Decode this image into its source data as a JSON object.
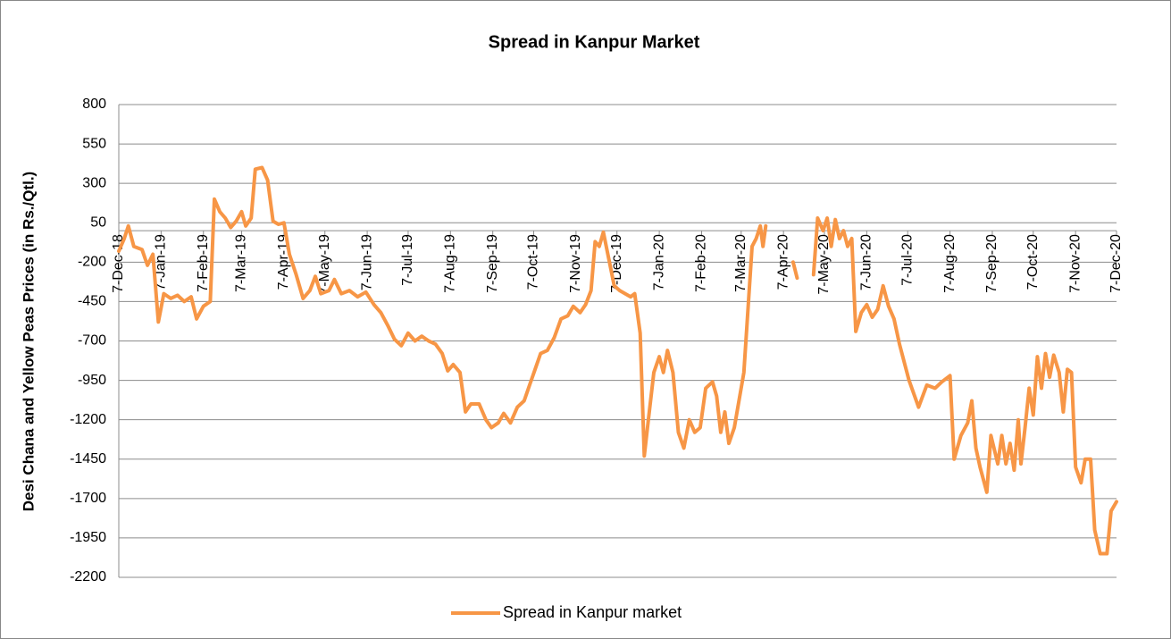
{
  "chart_data": {
    "type": "line",
    "title": "Spread in Kanpur Market",
    "y_label": "Desi  Chana and Yellow Peas Prices (in Rs./Qtl.)",
    "ylim": [
      -2200,
      800
    ],
    "yticks": [
      800,
      550,
      300,
      50,
      -200,
      -450,
      -700,
      -950,
      -1200,
      -1450,
      -1700,
      -1950,
      -2200
    ],
    "xlim": [
      "2018-12-07",
      "2020-12-07"
    ],
    "xticks": [
      {
        "value": "2018-12-07",
        "label": "7-Dec-18"
      },
      {
        "value": "2019-01-07",
        "label": "7-Jan-19"
      },
      {
        "value": "2019-02-07",
        "label": "7-Feb-19"
      },
      {
        "value": "2019-03-07",
        "label": "7-Mar-19"
      },
      {
        "value": "2019-04-07",
        "label": "7-Apr-19"
      },
      {
        "value": "2019-05-07",
        "label": "7-May-19"
      },
      {
        "value": "2019-06-07",
        "label": "7-Jun-19"
      },
      {
        "value": "2019-07-07",
        "label": "7-Jul-19"
      },
      {
        "value": "2019-08-07",
        "label": "7-Aug-19"
      },
      {
        "value": "2019-09-07",
        "label": "7-Sep-19"
      },
      {
        "value": "2019-10-07",
        "label": "7-Oct-19"
      },
      {
        "value": "2019-11-07",
        "label": "7-Nov-19"
      },
      {
        "value": "2019-12-07",
        "label": "7-Dec-19"
      },
      {
        "value": "2020-01-07",
        "label": "7-Jan-20"
      },
      {
        "value": "2020-02-07",
        "label": "7-Feb-20"
      },
      {
        "value": "2020-03-07",
        "label": "7-Mar-20"
      },
      {
        "value": "2020-04-07",
        "label": "7-Apr-20"
      },
      {
        "value": "2020-05-07",
        "label": "7-May-20"
      },
      {
        "value": "2020-06-07",
        "label": "7-Jun-20"
      },
      {
        "value": "2020-07-07",
        "label": "7-Jul-20"
      },
      {
        "value": "2020-08-07",
        "label": "7-Aug-20"
      },
      {
        "value": "2020-09-07",
        "label": "7-Sep-20"
      },
      {
        "value": "2020-10-07",
        "label": "7-Oct-20"
      },
      {
        "value": "2020-11-07",
        "label": "7-Nov-20"
      },
      {
        "value": "2020-12-07",
        "label": "7-Dec-20"
      }
    ],
    "grid": true,
    "legend": "bottom",
    "x": [
      "2018-12-07",
      "2018-12-11",
      "2018-12-14",
      "2018-12-18",
      "2018-12-24",
      "2018-12-28",
      "2019-01-01",
      "2019-01-05",
      "2019-01-09",
      "2019-01-14",
      "2019-01-19",
      "2019-01-24",
      "2019-01-29",
      "2019-02-02",
      "2019-02-07",
      "2019-02-12",
      "2019-02-15",
      "2019-02-19",
      "2019-02-23",
      "2019-02-27",
      "2019-03-03",
      "2019-03-07",
      "2019-03-10",
      "2019-03-14",
      "2019-03-17",
      "2019-03-22",
      "2019-03-26",
      "2019-03-30",
      "2019-04-03",
      "2019-04-07",
      "2019-04-11",
      "2019-04-16",
      "2019-04-21",
      "2019-04-26",
      "2019-04-30",
      "2019-05-04",
      "2019-05-10",
      "2019-05-14",
      "2019-05-19",
      "2019-05-25",
      "2019-05-31",
      "2019-06-06",
      "2019-06-12",
      "2019-06-17",
      "2019-06-22",
      "2019-06-27",
      "2019-07-02",
      "2019-07-07",
      "2019-07-12",
      "2019-07-17",
      "2019-07-22",
      "2019-07-27",
      "2019-08-01",
      "2019-08-05",
      "2019-08-09",
      "2019-08-14",
      "2019-08-18",
      "2019-08-22",
      "2019-08-28",
      "2019-09-02",
      "2019-09-06",
      "2019-09-11",
      "2019-09-15",
      "2019-09-20",
      "2019-09-25",
      "2019-09-30",
      "2019-10-04",
      "2019-10-08",
      "2019-10-12",
      "2019-10-17",
      "2019-10-22",
      "2019-10-27",
      "2019-11-01",
      "2019-11-05",
      "2019-11-10",
      "2019-11-14",
      "2019-11-18",
      "2019-11-21",
      "2019-11-24",
      "2019-11-27",
      "2019-12-01",
      "2019-12-05",
      "2019-12-09",
      "2019-12-13",
      "2019-12-17",
      "2019-12-20",
      "2019-12-24",
      "2019-12-27",
      "2019-12-30",
      "2020-01-03",
      "2020-01-07",
      "2020-01-10",
      "2020-01-13",
      "2020-01-17",
      "2020-01-21",
      "2020-01-25",
      "2020-01-29",
      "2020-02-02",
      "2020-02-06",
      "2020-02-10",
      "2020-02-15",
      "2020-02-18",
      "2020-02-21",
      "2020-02-24",
      "2020-02-27",
      "2020-03-02",
      "2020-03-05",
      "2020-03-09",
      "2020-03-12",
      "2020-03-15",
      "2020-03-18",
      "2020-03-21",
      "2020-03-23",
      "2020-03-25",
      "2020-04-05",
      "2020-04-14",
      "2020-04-17",
      "2020-04-22",
      "2020-04-29",
      "2020-05-02",
      "2020-05-06",
      "2020-05-09",
      "2020-05-12",
      "2020-05-15",
      "2020-05-18",
      "2020-05-21",
      "2020-05-24",
      "2020-05-27",
      "2020-05-30",
      "2020-06-03",
      "2020-06-07",
      "2020-06-11",
      "2020-06-15",
      "2020-06-19",
      "2020-06-23",
      "2020-06-27",
      "2020-07-01",
      "2020-07-08",
      "2020-07-15",
      "2020-07-21",
      "2020-07-27",
      "2020-08-01",
      "2020-08-07",
      "2020-08-10",
      "2020-08-15",
      "2020-08-20",
      "2020-08-23",
      "2020-08-26",
      "2020-08-29",
      "2020-09-03",
      "2020-09-06",
      "2020-09-11",
      "2020-09-14",
      "2020-09-17",
      "2020-09-20",
      "2020-09-23",
      "2020-09-26",
      "2020-09-28",
      "2020-10-01",
      "2020-10-04",
      "2020-10-07",
      "2020-10-10",
      "2020-10-13",
      "2020-10-16",
      "2020-10-19",
      "2020-10-22",
      "2020-10-26",
      "2020-10-29",
      "2020-11-01",
      "2020-11-04",
      "2020-11-07",
      "2020-11-11",
      "2020-11-14",
      "2020-11-18",
      "2020-11-21",
      "2020-11-25",
      "2020-11-30",
      "2020-12-03",
      "2020-12-07"
    ],
    "series": [
      {
        "name": "Spread in Kanpur market",
        "color": "#f79646",
        "values": [
          -130,
          -50,
          30,
          -100,
          -120,
          -220,
          -150,
          -580,
          -400,
          -430,
          -410,
          -450,
          -420,
          -560,
          -480,
          -450,
          200,
          120,
          80,
          20,
          60,
          120,
          30,
          80,
          390,
          400,
          320,
          60,
          40,
          50,
          -150,
          -280,
          -430,
          -380,
          -290,
          -400,
          -380,
          -310,
          -400,
          -380,
          -420,
          -390,
          -470,
          -520,
          -600,
          -690,
          -730,
          -650,
          -700,
          -670,
          -700,
          -720,
          -780,
          -890,
          -850,
          -900,
          -1150,
          -1100,
          -1100,
          -1200,
          -1250,
          -1220,
          -1160,
          -1220,
          -1120,
          -1080,
          -980,
          -880,
          -780,
          -760,
          -680,
          -560,
          -540,
          -480,
          -520,
          -470,
          -380,
          -70,
          -100,
          -10,
          -180,
          -350,
          -380,
          -400,
          -420,
          -400,
          -650,
          -1430,
          -1200,
          -900,
          -800,
          -900,
          -760,
          -900,
          -1280,
          -1380,
          -1200,
          -1280,
          -1250,
          -1000,
          -960,
          -1050,
          -1280,
          -1150,
          -1350,
          -1250,
          -1100,
          -900,
          -500,
          -100,
          -50,
          30,
          -100,
          30,
          null,
          -200,
          -300,
          null,
          -280,
          80,
          0,
          80,
          -100,
          70,
          -50,
          0,
          -100,
          -50,
          -640,
          -520,
          -470,
          -550,
          -500,
          -350,
          -480,
          -560,
          -720,
          -950,
          -1120,
          -980,
          -1000,
          -960,
          -920,
          -1450,
          -1300,
          -1220,
          -1080,
          -1380,
          -1500,
          -1660,
          -1300,
          -1480,
          -1300,
          -1480,
          -1350,
          -1520,
          -1200,
          -1480,
          -1250,
          -1000,
          -1170,
          -800,
          -1000,
          -780,
          -930,
          -790,
          -900,
          -1150,
          -880,
          -900,
          -1500,
          -1600,
          -1450,
          -1450,
          -1900,
          -2050,
          -2050,
          -1780,
          -1720
        ]
      }
    ]
  }
}
